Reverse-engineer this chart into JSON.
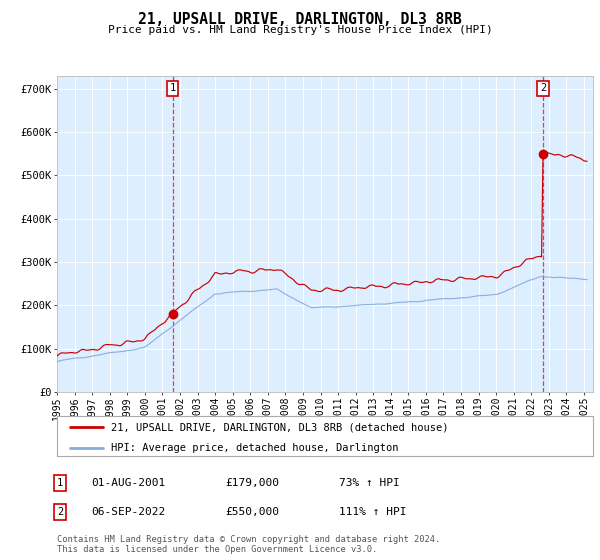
{
  "title": "21, UPSALL DRIVE, DARLINGTON, DL3 8RB",
  "subtitle": "Price paid vs. HM Land Registry's House Price Index (HPI)",
  "background_color": "#ffffff",
  "plot_bg_color": "#ddeeff",
  "red_line_color": "#cc0000",
  "blue_line_color": "#88aadd",
  "grid_color": "#ffffff",
  "sale1_date": "01-AUG-2001",
  "sale1_price": "£179,000",
  "sale1_hpi": "73% ↑ HPI",
  "sale2_date": "06-SEP-2022",
  "sale2_price": "£550,000",
  "sale2_hpi": "111% ↑ HPI",
  "legend1": "21, UPSALL DRIVE, DARLINGTON, DL3 8RB (detached house)",
  "legend2": "HPI: Average price, detached house, Darlington",
  "footnote": "Contains HM Land Registry data © Crown copyright and database right 2024.\nThis data is licensed under the Open Government Licence v3.0.",
  "ylabel_ticks": [
    "£0",
    "£100K",
    "£200K",
    "£300K",
    "£400K",
    "£500K",
    "£600K",
    "£700K"
  ],
  "ylabel_values": [
    0,
    100000,
    200000,
    300000,
    400000,
    500000,
    600000,
    700000
  ],
  "ymax": 730000,
  "xmin": 1995.0,
  "xmax": 2025.5
}
